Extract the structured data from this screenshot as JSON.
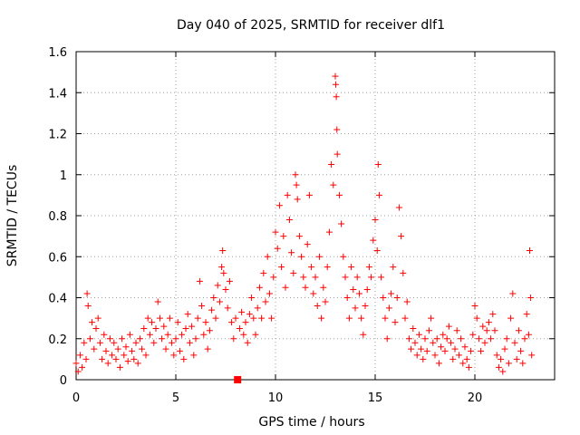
{
  "chart_data": {
    "type": "scatter",
    "title": "Day 040 of 2025, SRMTID for receiver dlf1",
    "xlabel": "GPS time / hours",
    "ylabel": "SRMTID / TECUs",
    "xlim": [
      0,
      24
    ],
    "ylim": [
      0,
      1.6
    ],
    "x_ticks": [
      "0",
      "5",
      "10",
      "15",
      "20"
    ],
    "x_tick_values": [
      0,
      5,
      10,
      15,
      20
    ],
    "y_ticks": [
      "0",
      "0.2",
      "0.4",
      "0.6",
      "0.8",
      "1",
      "1.2",
      "1.4",
      "1.6"
    ],
    "y_tick_values": [
      0,
      0.2,
      0.4,
      0.6,
      0.8,
      1.0,
      1.2,
      1.4,
      1.6
    ],
    "grid": true,
    "marker": "plus",
    "color": "#ff0000",
    "gap_marker": {
      "x": 8.1,
      "y": 0.0,
      "shape": "square"
    },
    "series": [
      {
        "name": "SRMTID",
        "points": [
          [
            0.0,
            0.08
          ],
          [
            0.1,
            0.04
          ],
          [
            0.2,
            0.12
          ],
          [
            0.3,
            0.06
          ],
          [
            0.4,
            0.18
          ],
          [
            0.5,
            0.1
          ],
          [
            0.55,
            0.42
          ],
          [
            0.6,
            0.36
          ],
          [
            0.7,
            0.2
          ],
          [
            0.8,
            0.28
          ],
          [
            0.9,
            0.15
          ],
          [
            1.0,
            0.25
          ],
          [
            1.1,
            0.3
          ],
          [
            1.2,
            0.18
          ],
          [
            1.3,
            0.1
          ],
          [
            1.4,
            0.22
          ],
          [
            1.5,
            0.14
          ],
          [
            1.6,
            0.08
          ],
          [
            1.7,
            0.2
          ],
          [
            1.8,
            0.12
          ],
          [
            1.9,
            0.18
          ],
          [
            2.0,
            0.1
          ],
          [
            2.1,
            0.15
          ],
          [
            2.2,
            0.06
          ],
          [
            2.3,
            0.2
          ],
          [
            2.4,
            0.12
          ],
          [
            2.5,
            0.16
          ],
          [
            2.6,
            0.09
          ],
          [
            2.7,
            0.22
          ],
          [
            2.8,
            0.14
          ],
          [
            2.9,
            0.1
          ],
          [
            3.0,
            0.18
          ],
          [
            3.1,
            0.08
          ],
          [
            3.2,
            0.2
          ],
          [
            3.3,
            0.15
          ],
          [
            3.4,
            0.25
          ],
          [
            3.5,
            0.12
          ],
          [
            3.6,
            0.3
          ],
          [
            3.7,
            0.22
          ],
          [
            3.8,
            0.28
          ],
          [
            3.9,
            0.18
          ],
          [
            4.0,
            0.25
          ],
          [
            4.1,
            0.38
          ],
          [
            4.2,
            0.3
          ],
          [
            4.3,
            0.2
          ],
          [
            4.4,
            0.26
          ],
          [
            4.5,
            0.15
          ],
          [
            4.6,
            0.22
          ],
          [
            4.7,
            0.3
          ],
          [
            4.8,
            0.18
          ],
          [
            4.9,
            0.12
          ],
          [
            5.0,
            0.2
          ],
          [
            5.1,
            0.28
          ],
          [
            5.2,
            0.14
          ],
          [
            5.3,
            0.22
          ],
          [
            5.4,
            0.1
          ],
          [
            5.5,
            0.25
          ],
          [
            5.6,
            0.32
          ],
          [
            5.7,
            0.18
          ],
          [
            5.8,
            0.26
          ],
          [
            5.9,
            0.12
          ],
          [
            6.0,
            0.2
          ],
          [
            6.1,
            0.3
          ],
          [
            6.2,
            0.48
          ],
          [
            6.3,
            0.36
          ],
          [
            6.4,
            0.22
          ],
          [
            6.5,
            0.28
          ],
          [
            6.6,
            0.15
          ],
          [
            6.7,
            0.24
          ],
          [
            6.8,
            0.34
          ],
          [
            6.9,
            0.4
          ],
          [
            7.0,
            0.3
          ],
          [
            7.1,
            0.46
          ],
          [
            7.2,
            0.38
          ],
          [
            7.3,
            0.55
          ],
          [
            7.35,
            0.63
          ],
          [
            7.4,
            0.52
          ],
          [
            7.5,
            0.44
          ],
          [
            7.6,
            0.35
          ],
          [
            7.7,
            0.48
          ],
          [
            7.8,
            0.28
          ],
          [
            7.9,
            0.2
          ],
          [
            8.0,
            0.3
          ],
          [
            8.2,
            0.25
          ],
          [
            8.3,
            0.33
          ],
          [
            8.4,
            0.22
          ],
          [
            8.5,
            0.28
          ],
          [
            8.6,
            0.18
          ],
          [
            8.7,
            0.32
          ],
          [
            8.8,
            0.4
          ],
          [
            8.9,
            0.3
          ],
          [
            9.0,
            0.22
          ],
          [
            9.1,
            0.35
          ],
          [
            9.2,
            0.45
          ],
          [
            9.3,
            0.3
          ],
          [
            9.4,
            0.52
          ],
          [
            9.5,
            0.38
          ],
          [
            9.6,
            0.6
          ],
          [
            9.7,
            0.42
          ],
          [
            9.8,
            0.3
          ],
          [
            9.9,
            0.5
          ],
          [
            10.0,
            0.72
          ],
          [
            10.1,
            0.64
          ],
          [
            10.2,
            0.85
          ],
          [
            10.3,
            0.55
          ],
          [
            10.4,
            0.7
          ],
          [
            10.5,
            0.45
          ],
          [
            10.6,
            0.9
          ],
          [
            10.7,
            0.78
          ],
          [
            10.8,
            0.62
          ],
          [
            10.9,
            0.52
          ],
          [
            11.0,
            1.0
          ],
          [
            11.05,
            0.95
          ],
          [
            11.1,
            0.88
          ],
          [
            11.2,
            0.7
          ],
          [
            11.3,
            0.6
          ],
          [
            11.4,
            0.5
          ],
          [
            11.5,
            0.45
          ],
          [
            11.6,
            0.66
          ],
          [
            11.7,
            0.9
          ],
          [
            11.8,
            0.55
          ],
          [
            11.9,
            0.42
          ],
          [
            12.0,
            0.5
          ],
          [
            12.1,
            0.36
          ],
          [
            12.2,
            0.6
          ],
          [
            12.3,
            0.3
          ],
          [
            12.4,
            0.45
          ],
          [
            12.5,
            0.38
          ],
          [
            12.6,
            0.55
          ],
          [
            12.7,
            0.72
          ],
          [
            12.8,
            1.05
          ],
          [
            12.9,
            0.95
          ],
          [
            13.0,
            1.48
          ],
          [
            13.02,
            1.44
          ],
          [
            13.05,
            1.38
          ],
          [
            13.08,
            1.22
          ],
          [
            13.1,
            1.1
          ],
          [
            13.2,
            0.9
          ],
          [
            13.3,
            0.76
          ],
          [
            13.4,
            0.6
          ],
          [
            13.5,
            0.5
          ],
          [
            13.6,
            0.4
          ],
          [
            13.7,
            0.3
          ],
          [
            13.8,
            0.55
          ],
          [
            13.9,
            0.44
          ],
          [
            14.0,
            0.35
          ],
          [
            14.1,
            0.5
          ],
          [
            14.2,
            0.42
          ],
          [
            14.3,
            0.3
          ],
          [
            14.4,
            0.22
          ],
          [
            14.5,
            0.36
          ],
          [
            14.6,
            0.44
          ],
          [
            14.7,
            0.55
          ],
          [
            14.8,
            0.5
          ],
          [
            14.9,
            0.68
          ],
          [
            15.0,
            0.78
          ],
          [
            15.1,
            0.63
          ],
          [
            15.15,
            1.05
          ],
          [
            15.2,
            0.9
          ],
          [
            15.3,
            0.5
          ],
          [
            15.4,
            0.4
          ],
          [
            15.5,
            0.3
          ],
          [
            15.6,
            0.2
          ],
          [
            15.7,
            0.35
          ],
          [
            15.8,
            0.42
          ],
          [
            15.9,
            0.55
          ],
          [
            16.0,
            0.28
          ],
          [
            16.1,
            0.4
          ],
          [
            16.2,
            0.84
          ],
          [
            16.3,
            0.7
          ],
          [
            16.4,
            0.52
          ],
          [
            16.5,
            0.3
          ],
          [
            16.6,
            0.38
          ],
          [
            16.7,
            0.2
          ],
          [
            16.8,
            0.15
          ],
          [
            16.9,
            0.25
          ],
          [
            17.0,
            0.18
          ],
          [
            17.1,
            0.12
          ],
          [
            17.2,
            0.22
          ],
          [
            17.3,
            0.15
          ],
          [
            17.4,
            0.1
          ],
          [
            17.5,
            0.2
          ],
          [
            17.6,
            0.14
          ],
          [
            17.7,
            0.24
          ],
          [
            17.8,
            0.3
          ],
          [
            17.9,
            0.18
          ],
          [
            18.0,
            0.12
          ],
          [
            18.1,
            0.2
          ],
          [
            18.2,
            0.08
          ],
          [
            18.3,
            0.16
          ],
          [
            18.4,
            0.22
          ],
          [
            18.5,
            0.14
          ],
          [
            18.6,
            0.2
          ],
          [
            18.7,
            0.26
          ],
          [
            18.8,
            0.18
          ],
          [
            18.9,
            0.1
          ],
          [
            19.0,
            0.15
          ],
          [
            19.1,
            0.24
          ],
          [
            19.2,
            0.12
          ],
          [
            19.3,
            0.2
          ],
          [
            19.4,
            0.08
          ],
          [
            19.5,
            0.16
          ],
          [
            19.6,
            0.1
          ],
          [
            19.7,
            0.06
          ],
          [
            19.8,
            0.14
          ],
          [
            19.9,
            0.22
          ],
          [
            20.0,
            0.36
          ],
          [
            20.1,
            0.3
          ],
          [
            20.2,
            0.2
          ],
          [
            20.3,
            0.14
          ],
          [
            20.4,
            0.26
          ],
          [
            20.5,
            0.18
          ],
          [
            20.6,
            0.24
          ],
          [
            20.7,
            0.28
          ],
          [
            20.8,
            0.2
          ],
          [
            20.9,
            0.32
          ],
          [
            21.0,
            0.24
          ],
          [
            21.1,
            0.12
          ],
          [
            21.2,
            0.06
          ],
          [
            21.3,
            0.1
          ],
          [
            21.4,
            0.04
          ],
          [
            21.5,
            0.15
          ],
          [
            21.6,
            0.2
          ],
          [
            21.7,
            0.08
          ],
          [
            21.8,
            0.3
          ],
          [
            21.9,
            0.42
          ],
          [
            22.0,
            0.18
          ],
          [
            22.1,
            0.1
          ],
          [
            22.2,
            0.24
          ],
          [
            22.3,
            0.14
          ],
          [
            22.4,
            0.08
          ],
          [
            22.5,
            0.2
          ],
          [
            22.6,
            0.32
          ],
          [
            22.7,
            0.22
          ],
          [
            22.75,
            0.63
          ],
          [
            22.8,
            0.4
          ],
          [
            22.85,
            0.12
          ]
        ]
      }
    ]
  }
}
